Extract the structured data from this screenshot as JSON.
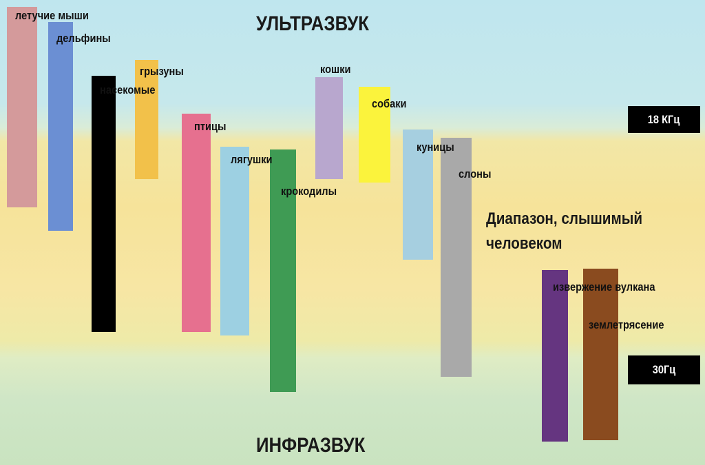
{
  "zones": {
    "ultrasound": "УЛЬТРАЗВУК",
    "infrasound": "ИНФРАЗВУК"
  },
  "human_range": "Диапазон, слышимый человеком",
  "markers": {
    "upper": "18 КГц",
    "lower": "30Гц"
  },
  "sources": [
    {
      "label": "летучие мыши",
      "color": "#d49a9b"
    },
    {
      "label": "дельфины",
      "color": "#6b8fd3"
    },
    {
      "label": "насекомые",
      "color": "#000000"
    },
    {
      "label": "грызуны",
      "color": "#f2c14a"
    },
    {
      "label": "птицы",
      "color": "#e6708f"
    },
    {
      "label": "лягушки",
      "color": "#9dd0e2"
    },
    {
      "label": "крокодилы",
      "color": "#3f9b54"
    },
    {
      "label": "кошки",
      "color": "#b8a7ce"
    },
    {
      "label": "собаки",
      "color": "#fbf33c"
    },
    {
      "label": "куницы",
      "color": "#a6cfe0"
    },
    {
      "label": "слоны",
      "color": "#a9a9a9"
    },
    {
      "label": "извержение вулкана",
      "color": "#653580"
    },
    {
      "label": "землетрясение",
      "color": "#8a4b1f"
    }
  ]
}
